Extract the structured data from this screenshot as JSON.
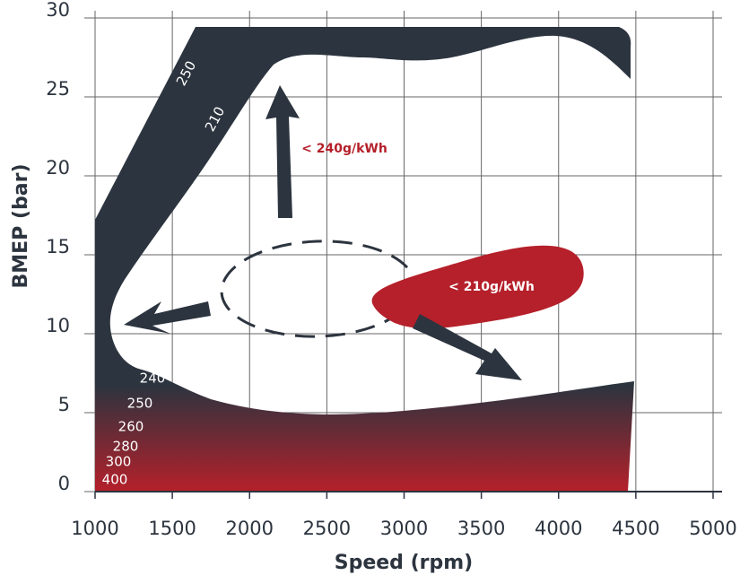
{
  "chart_data": {
    "type": "contour",
    "x_label": "Speed (rpm)",
    "y_label": "BMEP (bar)",
    "xlim": [
      1000,
      5000
    ],
    "xticks": [
      1000,
      1500,
      2000,
      2500,
      3000,
      3500,
      4000,
      4500,
      5000
    ],
    "ylim": [
      0,
      30
    ],
    "yticks": [
      0,
      5,
      10,
      15,
      20,
      25,
      30
    ],
    "grid": true,
    "annotations": [
      "250",
      "210",
      "240",
      "250",
      "260",
      "280",
      "300",
      "400",
      "< 240g/kWh",
      "< 210g/kWh"
    ]
  }
}
